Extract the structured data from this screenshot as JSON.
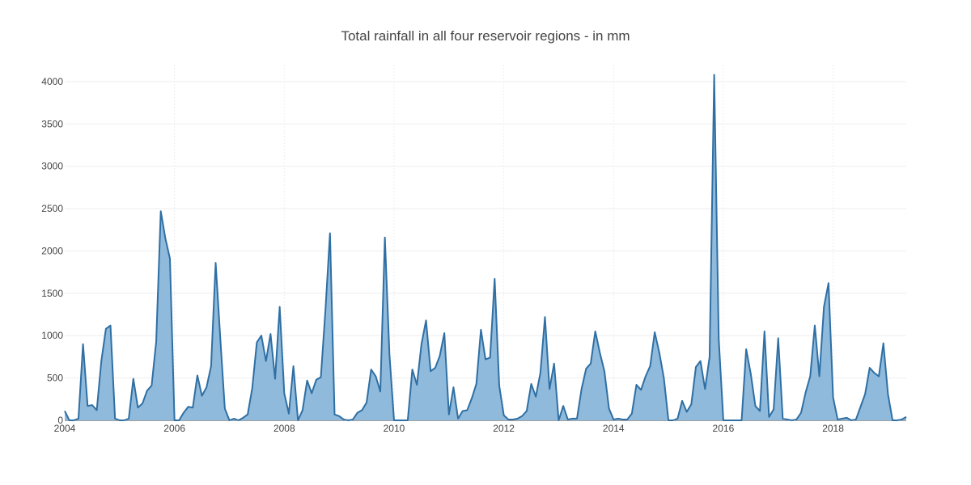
{
  "chart_data": {
    "type": "area",
    "title": "Total rainfall in all four reservoir regions - in mm",
    "xlabel": "",
    "ylabel": "",
    "x_start": "2004-01",
    "x_end": "2019-05",
    "x_tick_labels": [
      "2004",
      "2006",
      "2008",
      "2010",
      "2012",
      "2014",
      "2016",
      "2018"
    ],
    "y_tick_labels": [
      "0",
      "500",
      "1000",
      "1500",
      "2000",
      "2500",
      "3000",
      "3500",
      "4000"
    ],
    "ylim": [
      0,
      4200
    ],
    "grid": true,
    "legend": "none",
    "colors": {
      "line": "#2f6fa3",
      "fill": "#8fbadc"
    },
    "series": [
      {
        "x": [
          "2004-01",
          "2004-02",
          "2004-03",
          "2004-04",
          "2004-05",
          "2004-06",
          "2004-07",
          "2004-08",
          "2004-09",
          "2004-10",
          "2004-11",
          "2004-12",
          "2005-01",
          "2005-02",
          "2005-03",
          "2005-04",
          "2005-05",
          "2005-06",
          "2005-07",
          "2005-08",
          "2005-09",
          "2005-10",
          "2005-11",
          "2005-12",
          "2006-01",
          "2006-02",
          "2006-03",
          "2006-04",
          "2006-05",
          "2006-06",
          "2006-07",
          "2006-08",
          "2006-09",
          "2006-10",
          "2006-11",
          "2006-12",
          "2007-01",
          "2007-02",
          "2007-03",
          "2007-04",
          "2007-05",
          "2007-06",
          "2007-07",
          "2007-08",
          "2007-09",
          "2007-10",
          "2007-11",
          "2007-12",
          "2008-01",
          "2008-02",
          "2008-03",
          "2008-04",
          "2008-05",
          "2008-06",
          "2008-07",
          "2008-08",
          "2008-09",
          "2008-10",
          "2008-11",
          "2008-12",
          "2009-01",
          "2009-02",
          "2009-03",
          "2009-04",
          "2009-05",
          "2009-06",
          "2009-07",
          "2009-08",
          "2009-09",
          "2009-10",
          "2009-11",
          "2009-12",
          "2010-01",
          "2010-02",
          "2010-03",
          "2010-04",
          "2010-05",
          "2010-06",
          "2010-07",
          "2010-08",
          "2010-09",
          "2010-10",
          "2010-11",
          "2010-12",
          "2011-01",
          "2011-02",
          "2011-03",
          "2011-04",
          "2011-05",
          "2011-06",
          "2011-07",
          "2011-08",
          "2011-09",
          "2011-10",
          "2011-11",
          "2011-12",
          "2012-01",
          "2012-02",
          "2012-03",
          "2012-04",
          "2012-05",
          "2012-06",
          "2012-07",
          "2012-08",
          "2012-09",
          "2012-10",
          "2012-11",
          "2012-12",
          "2013-01",
          "2013-02",
          "2013-03",
          "2013-04",
          "2013-05",
          "2013-06",
          "2013-07",
          "2013-08",
          "2013-09",
          "2013-10",
          "2013-11",
          "2013-12",
          "2014-01",
          "2014-02",
          "2014-03",
          "2014-04",
          "2014-05",
          "2014-06",
          "2014-07",
          "2014-08",
          "2014-09",
          "2014-10",
          "2014-11",
          "2014-12",
          "2015-01",
          "2015-02",
          "2015-03",
          "2015-04",
          "2015-05",
          "2015-06",
          "2015-07",
          "2015-08",
          "2015-09",
          "2015-10",
          "2015-11",
          "2015-12",
          "2016-01",
          "2016-02",
          "2016-03",
          "2016-04",
          "2016-05",
          "2016-06",
          "2016-07",
          "2016-08",
          "2016-09",
          "2016-10",
          "2016-11",
          "2016-12",
          "2017-01",
          "2017-02",
          "2017-03",
          "2017-04",
          "2017-05",
          "2017-06",
          "2017-07",
          "2017-08",
          "2017-09",
          "2017-10",
          "2017-11",
          "2017-12",
          "2018-01",
          "2018-02",
          "2018-03",
          "2018-04",
          "2018-05",
          "2018-06",
          "2018-07",
          "2018-08",
          "2018-09",
          "2018-10",
          "2018-11",
          "2018-12",
          "2019-01",
          "2019-02",
          "2019-03",
          "2019-04",
          "2019-05"
        ],
        "values": [
          110,
          0,
          0,
          20,
          900,
          170,
          180,
          120,
          700,
          1080,
          1120,
          20,
          0,
          0,
          20,
          490,
          150,
          200,
          350,
          410,
          930,
          2470,
          2150,
          1910,
          0,
          0,
          90,
          160,
          150,
          530,
          290,
          390,
          640,
          1860,
          980,
          140,
          0,
          20,
          0,
          30,
          70,
          380,
          920,
          1000,
          700,
          1020,
          490,
          1340,
          320,
          80,
          640,
          0,
          120,
          470,
          320,
          480,
          510,
          1300,
          2210,
          70,
          50,
          10,
          0,
          10,
          90,
          120,
          210,
          600,
          520,
          340,
          2160,
          780,
          0,
          0,
          0,
          0,
          600,
          420,
          900,
          1180,
          580,
          620,
          760,
          1030,
          70,
          390,
          20,
          110,
          120,
          260,
          430,
          1070,
          720,
          740,
          1670,
          410,
          60,
          10,
          10,
          20,
          50,
          110,
          430,
          280,
          560,
          1220,
          370,
          670,
          0,
          170,
          10,
          20,
          20,
          370,
          610,
          670,
          1050,
          800,
          580,
          140,
          10,
          20,
          10,
          10,
          80,
          420,
          360,
          520,
          640,
          1040,
          800,
          500,
          0,
          0,
          20,
          230,
          100,
          190,
          630,
          700,
          370,
          750,
          4080,
          960,
          0,
          0,
          0,
          0,
          0,
          840,
          550,
          170,
          110,
          1050,
          40,
          130,
          970,
          20,
          10,
          0,
          10,
          90,
          330,
          520,
          1120,
          520,
          1340,
          1620,
          270,
          10,
          20,
          30,
          0,
          10,
          160,
          310,
          620,
          560,
          520,
          910,
          310,
          0,
          0,
          10,
          40
        ]
      }
    ]
  }
}
